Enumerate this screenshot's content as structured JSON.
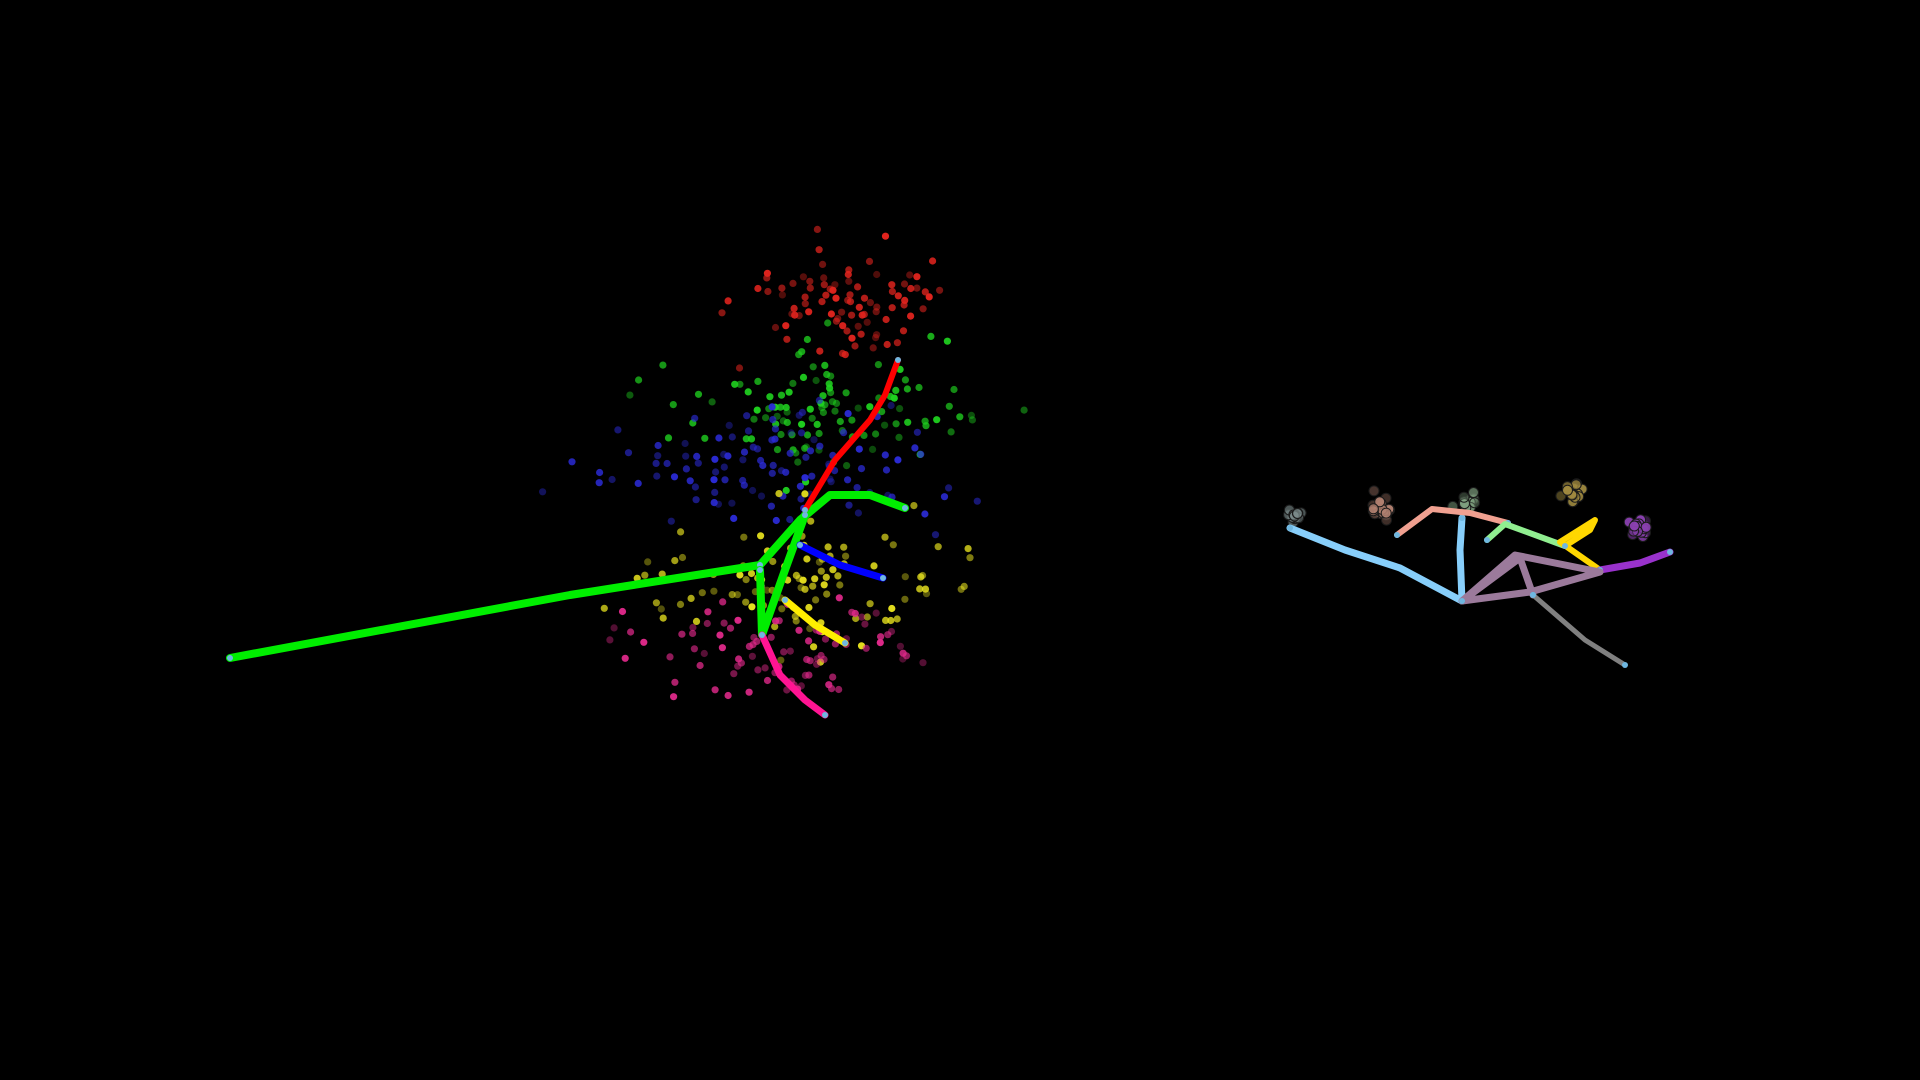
{
  "scene": {
    "background": "#000000",
    "views": [
      {
        "id": "left-view",
        "name": "trajectory-tree-left",
        "point_groups": [
          {
            "name": "red-cluster",
            "color": "#e3241e",
            "count": 90,
            "seed": 11
          },
          {
            "name": "green-cluster",
            "color": "#1fd11f",
            "count": 110,
            "seed": 23
          },
          {
            "name": "blue-cluster",
            "color": "#2b2bd6",
            "count": 110,
            "seed": 37
          },
          {
            "name": "yellow-cluster",
            "color": "#e6e01e",
            "count": 110,
            "seed": 41
          },
          {
            "name": "pink-cluster",
            "color": "#e0298a",
            "count": 90,
            "seed": 53
          }
        ],
        "branches": [
          {
            "name": "green-long-branch",
            "color": "#00ee00"
          },
          {
            "name": "green-upper-branch",
            "color": "#00ee00"
          },
          {
            "name": "green-lower-branch",
            "color": "#00ee00"
          },
          {
            "name": "red-branch",
            "color": "#ff0000"
          },
          {
            "name": "blue-branch",
            "color": "#0000ff"
          },
          {
            "name": "yellow-branch",
            "color": "#ffee00"
          },
          {
            "name": "pink-branch",
            "color": "#ff1493"
          }
        ]
      },
      {
        "id": "right-view",
        "name": "trajectory-tree-right",
        "point_groups": [
          {
            "name": "gray-cluster",
            "color": "#7a8a8a",
            "count": 14,
            "seed": 61
          },
          {
            "name": "tan-cluster",
            "color": "#b08070",
            "count": 22,
            "seed": 67
          },
          {
            "name": "sage-cluster",
            "color": "#7fa07f",
            "count": 16,
            "seed": 71
          },
          {
            "name": "olive-cluster",
            "color": "#a08a40",
            "count": 18,
            "seed": 79
          },
          {
            "name": "violet-cluster",
            "color": "#8a40b0",
            "count": 22,
            "seed": 83
          }
        ],
        "branches": [
          {
            "name": "skyblue-branch",
            "color": "#87cefa"
          },
          {
            "name": "skyblue-vertical-branch",
            "color": "#87cefa"
          },
          {
            "name": "salmon-branch",
            "color": "#f0a090"
          },
          {
            "name": "lightgreen-branch",
            "color": "#90ee90"
          },
          {
            "name": "gold-branch",
            "color": "#ffd700"
          },
          {
            "name": "purple-branch",
            "color": "#9932cc"
          },
          {
            "name": "mauve-loop-branch",
            "color": "#9b7a9b"
          },
          {
            "name": "gray-branch",
            "color": "#808080"
          }
        ]
      }
    ]
  }
}
